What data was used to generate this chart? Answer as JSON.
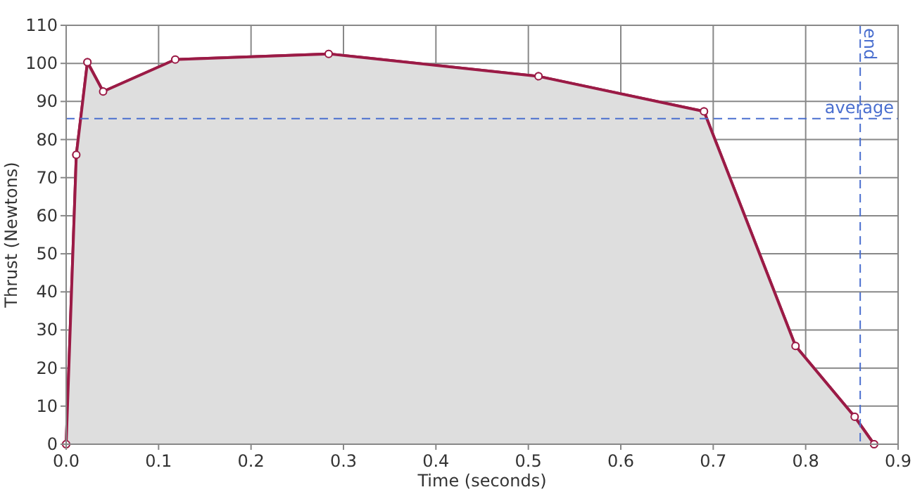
{
  "chart_data": {
    "type": "area",
    "xlabel": "Time (seconds)",
    "ylabel": "Thrust (Newtons)",
    "x": [
      0,
      0.011,
      0.023,
      0.04,
      0.118,
      0.284,
      0.511,
      0.69,
      0.789,
      0.853,
      0.874
    ],
    "series": [
      {
        "color": "#9b1b46",
        "values": [
          0,
          76,
          100.3,
          92.6,
          101,
          102.5,
          96.6,
          87.4,
          25.8,
          7.2,
          0
        ]
      }
    ],
    "xlim": [
      0,
      0.9
    ],
    "xticks": [
      {
        "value": 0,
        "label": "0.0"
      },
      0.1,
      0.2,
      0.3,
      0.4,
      0.5,
      0.6,
      0.7,
      0.8,
      0.9
    ],
    "ylim": [
      0,
      110
    ],
    "yticks": [
      0,
      10,
      20,
      30,
      40,
      50,
      60,
      70,
      80,
      90,
      100,
      110
    ],
    "grid": true,
    "marker": "circle",
    "ref_lines": [
      {
        "axis": "y",
        "value": 85.5,
        "label": "average",
        "color": "#4a6fcf",
        "line_style": "dashed"
      },
      {
        "axis": "x",
        "value": 0.859,
        "label": "end",
        "color": "#4a6fcf",
        "line_style": "dashed"
      }
    ]
  }
}
